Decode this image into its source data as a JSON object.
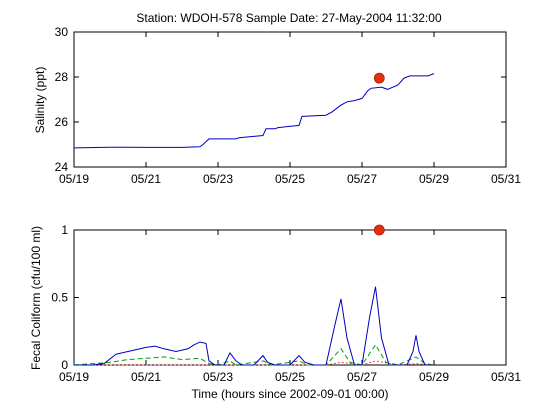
{
  "title": "Station: WDOH-578   Sample Date: 27-May-2004 11:32:00",
  "colors": {
    "line": "#0000c0",
    "line2": "#00a000",
    "line3": "#ff4040",
    "marker": "#e03010"
  },
  "chart_data": [
    {
      "type": "line",
      "ylabel": "Salinity (ppt)",
      "xlim": [
        "05/19",
        "05/31"
      ],
      "ylim": [
        24,
        30
      ],
      "x_ticks": [
        "05/19",
        "05/21",
        "05/23",
        "05/25",
        "05/27",
        "05/29",
        "05/31"
      ],
      "y_ticks": [
        "24",
        "26",
        "28",
        "30"
      ],
      "series": [
        {
          "x": [
            "05/19 00:00",
            "05/20 00:00",
            "05/21 00:00",
            "05/22 00:00",
            "05/22 12:00",
            "05/22 14:00",
            "05/22 18:00",
            "05/23 12:00",
            "05/23 14:00",
            "05/24 06:00",
            "05/24 08:00",
            "05/24 14:00",
            "05/24 16:00",
            "05/25 06:00",
            "05/25 08:00",
            "05/26 00:00",
            "05/26 04:00",
            "05/26 10:00",
            "05/26 14:00",
            "05/26 19:00",
            "05/27 00:00",
            "05/27 04:00",
            "05/27 06:00",
            "05/27 13:00",
            "05/27 17:00",
            "05/28 00:00",
            "05/28 04:00",
            "05/28 08:00",
            "05/28 20:00",
            "05/29 00:00"
          ],
          "values": [
            24.85,
            24.88,
            24.87,
            24.87,
            24.9,
            25.0,
            25.25,
            25.25,
            25.3,
            25.4,
            25.7,
            25.7,
            25.75,
            25.85,
            26.25,
            26.3,
            26.45,
            26.75,
            26.9,
            26.95,
            27.05,
            27.4,
            27.5,
            27.55,
            27.45,
            27.65,
            27.95,
            28.05,
            28.05,
            28.15
          ]
        }
      ],
      "marker": {
        "x": "05/27 11:32",
        "value": 27.95
      }
    },
    {
      "type": "line",
      "xlabel": "Time (hours since 2002-09-01 00:00)",
      "ylabel": "Fecal Coliform (cfu/100 ml)",
      "xlim": [
        "05/19",
        "05/31"
      ],
      "ylim": [
        0,
        1.0
      ],
      "x_ticks": [
        "05/19",
        "05/21",
        "05/23",
        "05/25",
        "05/27",
        "05/29",
        "05/31"
      ],
      "y_ticks": [
        "0",
        "0.5",
        "1"
      ],
      "series": [
        {
          "x": [
            "05/19 00:00",
            "05/19 12:00",
            "05/19 20:00",
            "05/20 04:00",
            "05/20 12:00",
            "05/20 20:00",
            "05/21 00:00",
            "05/21 06:00",
            "05/21 12:00",
            "05/21 20:00",
            "05/22 04:00",
            "05/22 08:00",
            "05/22 12:00",
            "05/22 16:00",
            "05/22 18:00",
            "05/22 22:00",
            "05/23 04:00",
            "05/23 08:00",
            "05/23 12:00",
            "05/23 16:00",
            "05/24 00:00",
            "05/24 06:00",
            "05/24 09:00",
            "05/24 14:00",
            "05/25 00:00",
            "05/25 06:00",
            "05/25 10:00",
            "05/25 16:00",
            "05/26 00:00",
            "05/26 06:00",
            "05/26 10:00",
            "05/26 14:00",
            "05/26 19:00",
            "05/27 00:00",
            "05/27 05:00",
            "05/27 09:00",
            "05/27 13:00",
            "05/27 18:00",
            "05/28 00:00",
            "05/28 06:00",
            "05/28 10:00",
            "05/28 12:00",
            "05/28 14:00",
            "05/28 18:00",
            "05/29 00:00"
          ],
          "values": [
            0,
            0,
            0.01,
            0.08,
            0.1,
            0.12,
            0.13,
            0.14,
            0.12,
            0.1,
            0.12,
            0.15,
            0.17,
            0.16,
            0.03,
            0,
            0,
            0.09,
            0.03,
            0,
            0,
            0.07,
            0.02,
            0,
            0,
            0.07,
            0.02,
            0,
            0,
            0.3,
            0.49,
            0.2,
            0,
            0,
            0.35,
            0.58,
            0.2,
            0,
            0,
            0,
            0.1,
            0.22,
            0.1,
            0,
            0
          ]
        },
        {
          "x": [
            "05/19 00:00",
            "05/20 00:00",
            "05/20 12:00",
            "05/21 00:00",
            "05/21 12:00",
            "05/22 00:00",
            "05/22 12:00",
            "05/22 18:00",
            "05/23 00:00",
            "05/23 08:00",
            "05/23 12:00",
            "05/24 06:00",
            "05/24 12:00",
            "05/25 06:00",
            "05/25 12:00",
            "05/26 00:00",
            "05/26 10:00",
            "05/26 16:00",
            "05/27 00:00",
            "05/27 09:00",
            "05/27 16:00",
            "05/28 00:00",
            "05/28 12:00",
            "05/28 18:00",
            "05/29 00:00"
          ],
          "values": [
            0,
            0.02,
            0.04,
            0.05,
            0.06,
            0.04,
            0.05,
            0.01,
            0,
            0.03,
            0,
            0.03,
            0,
            0.03,
            0,
            0,
            0.12,
            0.02,
            0,
            0.15,
            0.02,
            0,
            0.06,
            0.01,
            0
          ]
        },
        {
          "x": [
            "05/19 00:00",
            "05/23 00:00",
            "05/26 00:00",
            "05/26 10:00",
            "05/27 00:00",
            "05/27 09:00",
            "05/28 00:00",
            "05/28 12:00",
            "05/29 00:00"
          ],
          "values": [
            0,
            0,
            0,
            0.02,
            0,
            0.03,
            0,
            0.01,
            0
          ]
        }
      ],
      "marker": {
        "x": "05/27 11:32",
        "value": 1.0
      }
    }
  ]
}
